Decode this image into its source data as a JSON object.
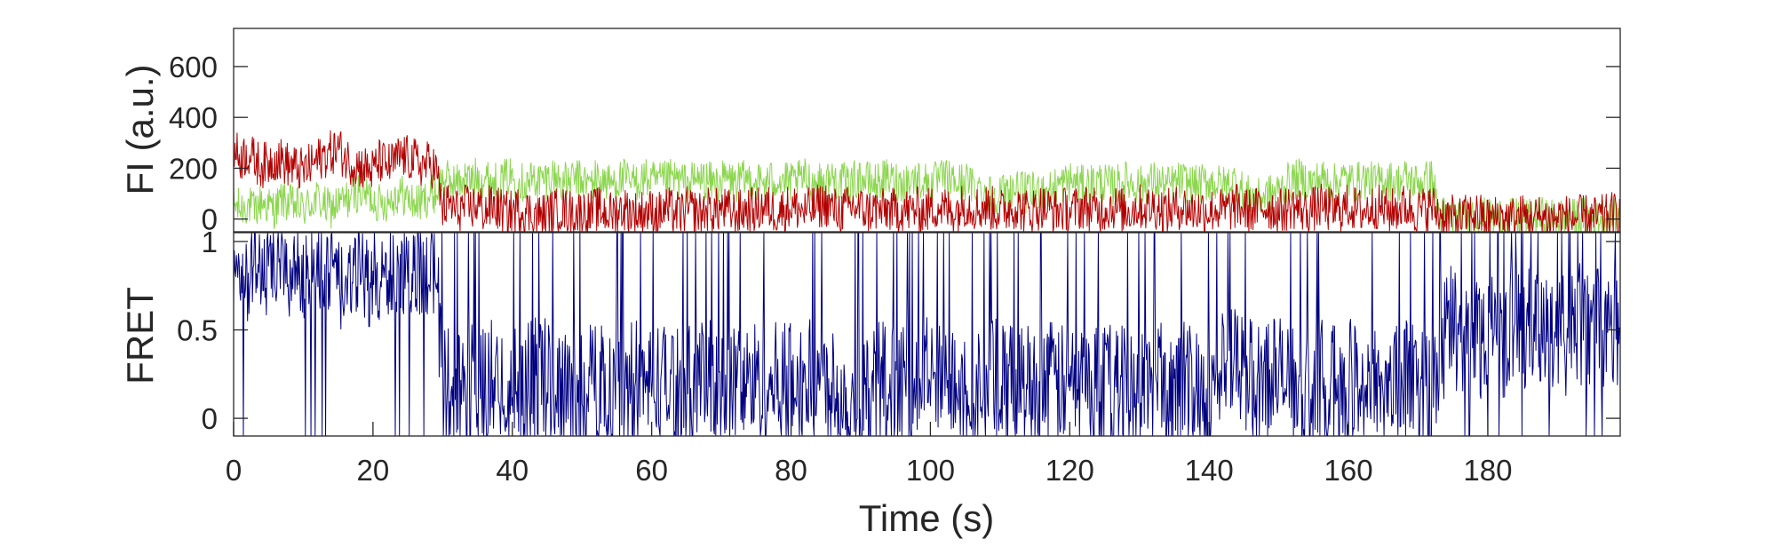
{
  "chart_data": [
    {
      "type": "line",
      "ylabel": "FI (a.u.)",
      "xlim": [
        0,
        199
      ],
      "ylim": [
        -50,
        750
      ],
      "yticks": [
        0,
        200,
        400,
        600
      ],
      "ytick_labels": [
        "0",
        "200",
        "400",
        "600"
      ],
      "series": [
        {
          "color": "#8cd64f",
          "values_at_1s": [
            55,
            40,
            60,
            30,
            70,
            50,
            40,
            80,
            60,
            50,
            40,
            60,
            80,
            50,
            40,
            60,
            70,
            90,
            110,
            100,
            80,
            60,
            70,
            90,
            100,
            80,
            60,
            70,
            90,
            100,
            160,
            150,
            140,
            160,
            150,
            170,
            160,
            150,
            140,
            160,
            170,
            150,
            140,
            160,
            150,
            160,
            170,
            150,
            140,
            160,
            150,
            140,
            160,
            150,
            140,
            150,
            160,
            140,
            150,
            160,
            150,
            140,
            150,
            160,
            150,
            140,
            150,
            160,
            150,
            140,
            150,
            160,
            140,
            150,
            160,
            150,
            140,
            150,
            160,
            150,
            140,
            150,
            160,
            150,
            140,
            150,
            160,
            150,
            140,
            150,
            160,
            150,
            140,
            150,
            160,
            150,
            140,
            150,
            160,
            150,
            140,
            150,
            160,
            150,
            140,
            150,
            130,
            120,
            110,
            100,
            100,
            110,
            120,
            110,
            100,
            110,
            120,
            110,
            130,
            140,
            150,
            140,
            130,
            140,
            150,
            140,
            130,
            140,
            150,
            140,
            130,
            140,
            150,
            140,
            130,
            140,
            150,
            140,
            130,
            140,
            150,
            140,
            130,
            140,
            150,
            100,
            90,
            80,
            90,
            100,
            110,
            140,
            150,
            160,
            150,
            140,
            160,
            150,
            140,
            160,
            150,
            140,
            160,
            150,
            140,
            160,
            150,
            140,
            160,
            150,
            140,
            150,
            160,
            20,
            10,
            5,
            0,
            10,
            20,
            10,
            0,
            5,
            10,
            0,
            5,
            10,
            0,
            5,
            10,
            0,
            5,
            10,
            0,
            5,
            10,
            0,
            5,
            10,
            0,
            5
          ]
        },
        {
          "color": "#b30000",
          "values_at_1s": [
            270,
            240,
            260,
            230,
            210,
            220,
            240,
            230,
            210,
            200,
            190,
            210,
            230,
            250,
            260,
            280,
            240,
            220,
            210,
            200,
            190,
            230,
            210,
            220,
            250,
            240,
            230,
            210,
            220,
            200,
            40,
            60,
            30,
            50,
            40,
            60,
            30,
            50,
            40,
            20,
            30,
            40,
            30,
            20,
            10,
            20,
            30,
            40,
            30,
            20,
            30,
            20,
            40,
            30,
            20,
            30,
            40,
            30,
            20,
            30,
            30,
            20,
            40,
            30,
            20,
            40,
            30,
            20,
            40,
            30,
            40,
            30,
            20,
            30,
            40,
            30,
            50,
            40,
            30,
            40,
            50,
            40,
            30,
            40,
            50,
            60,
            40,
            30,
            40,
            50,
            40,
            30,
            40,
            30,
            40,
            30,
            40,
            30,
            40,
            30,
            40,
            50,
            40,
            30,
            40,
            60,
            50,
            40,
            50,
            40,
            30,
            40,
            50,
            40,
            30,
            40,
            50,
            40,
            30,
            40,
            30,
            40,
            50,
            40,
            30,
            40,
            50,
            40,
            30,
            40,
            50,
            40,
            50,
            40,
            30,
            40,
            50,
            40,
            30,
            40,
            30,
            40,
            30,
            40,
            50,
            40,
            30,
            40,
            50,
            40,
            30,
            40,
            50,
            40,
            30,
            40,
            50,
            40,
            30,
            40,
            50,
            40,
            30,
            40,
            50,
            40,
            30,
            40,
            50,
            40,
            30,
            40,
            50,
            20,
            10,
            5,
            0,
            10,
            20,
            10,
            0,
            5,
            10,
            0,
            5,
            10,
            0,
            5,
            10,
            0,
            5,
            10,
            0,
            5,
            10,
            0,
            5,
            10,
            20,
            10
          ]
        }
      ]
    },
    {
      "type": "line",
      "xlabel": "Time (s)",
      "ylabel": "FRET",
      "xlim": [
        0,
        199
      ],
      "ylim": [
        -0.1,
        1.05
      ],
      "xticks": [
        0,
        20,
        40,
        60,
        80,
        100,
        120,
        140,
        160,
        180
      ],
      "xtick_labels": [
        "0",
        "20",
        "40",
        "60",
        "80",
        "100",
        "120",
        "140",
        "160",
        "180"
      ],
      "yticks": [
        0,
        0.5,
        1
      ],
      "ytick_labels": [
        "0",
        "0.5",
        "1"
      ],
      "series": [
        {
          "color": "#000080",
          "values_at_1s": [
            0.82,
            0.85,
            0.8,
            0.88,
            0.84,
            0.78,
            0.86,
            0.83,
            0.8,
            0.85,
            0.82,
            0.79,
            0.86,
            0.84,
            0.8,
            0.75,
            0.7,
            0.78,
            0.85,
            0.8,
            0.72,
            0.74,
            0.8,
            0.85,
            0.82,
            0.78,
            0.86,
            0.83,
            0.8,
            0.84,
            0.18,
            0.2,
            0.15,
            0.22,
            0.18,
            0.2,
            0.16,
            0.22,
            0.18,
            0.2,
            0.16,
            0.2,
            0.18,
            0.22,
            0.25,
            0.2,
            0.18,
            0.22,
            0.2,
            0.18,
            0.2,
            0.22,
            0.18,
            0.2,
            0.25,
            0.22,
            0.18,
            0.2,
            0.22,
            0.18,
            0.2,
            0.22,
            0.18,
            0.2,
            0.22,
            0.2,
            0.18,
            0.2,
            0.22,
            0.18,
            0.2,
            0.22,
            0.2,
            0.18,
            0.2,
            0.22,
            0.2,
            0.18,
            0.2,
            0.22,
            0.2,
            0.18,
            0.2,
            0.22,
            0.2,
            0.18,
            0.2,
            0.16,
            0.1,
            0.08,
            0.1,
            0.15,
            0.2,
            0.22,
            0.2,
            0.18,
            0.2,
            0.22,
            0.2,
            0.25,
            0.22,
            0.2,
            0.18,
            0.22,
            0.25,
            0.22,
            0.2,
            0.18,
            0.2,
            0.22,
            0.2,
            0.18,
            0.2,
            0.22,
            0.2,
            0.18,
            0.2,
            0.22,
            0.2,
            0.18,
            0.2,
            0.22,
            0.2,
            0.18,
            0.2,
            0.22,
            0.2,
            0.18,
            0.2,
            0.22,
            0.2,
            0.18,
            0.2,
            0.22,
            0.2,
            0.18,
            0.2,
            0.22,
            0.2,
            0.18,
            0.2,
            0.22,
            0.25,
            0.3,
            0.28,
            0.25,
            0.22,
            0.2,
            0.25,
            0.3,
            0.25,
            0.2,
            0.22,
            0.2,
            0.18,
            0.2,
            0.22,
            0.2,
            0.18,
            0.2,
            0.22,
            0.2,
            0.18,
            0.2,
            0.22,
            0.2,
            0.18,
            0.2,
            0.22,
            0.2,
            0.18,
            0.2,
            0.22,
            0.2,
            0.5,
            0.55,
            0.45,
            0.5,
            0.55,
            0.45,
            0.5,
            0.55,
            0.45,
            0.5,
            0.55,
            0.45,
            0.5,
            0.55,
            0.45,
            0.5,
            0.55,
            0.45,
            0.5,
            0.55,
            0.45,
            0.5,
            0.55,
            0.45,
            0.5,
            0.55
          ]
        }
      ]
    }
  ]
}
